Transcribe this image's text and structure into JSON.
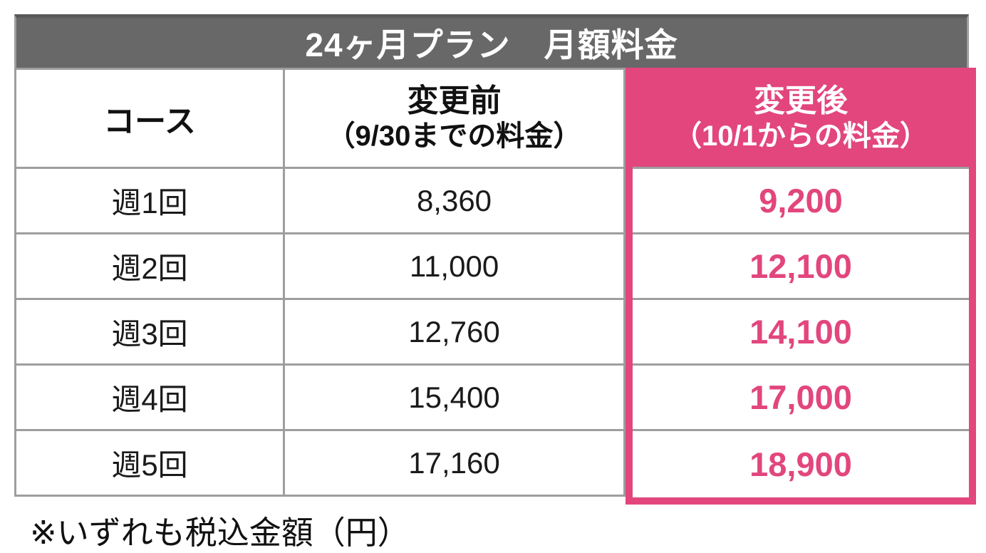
{
  "table": {
    "title": "24ヶ月プラン　月額料金",
    "columns": {
      "course": "コース",
      "before": {
        "line1": "変更前",
        "line2": "（9/30までの料金）"
      },
      "after": {
        "line1": "変更後",
        "line2": "（10/1からの料金）"
      }
    },
    "rows": [
      {
        "course": "週1回",
        "before": "8,360",
        "after": "9,200"
      },
      {
        "course": "週2回",
        "before": "11,000",
        "after": "12,100"
      },
      {
        "course": "週3回",
        "before": "12,760",
        "after": "14,100"
      },
      {
        "course": "週4回",
        "before": "15,400",
        "after": "17,000"
      },
      {
        "course": "週5回",
        "before": "17,160",
        "after": "18,900"
      }
    ],
    "footnote": "※いずれも税込金額（円）"
  },
  "colors": {
    "accent_pink": "#e2467d",
    "title_gray": "#686868",
    "grid_line": "#9e9e9e"
  },
  "chart_data": {
    "type": "table",
    "title": "24ヶ月プラン　月額料金",
    "columns": [
      "コース",
      "変更前（9/30までの料金）",
      "変更後（10/1からの料金）"
    ],
    "rows": [
      [
        "週1回",
        "8,360",
        "9,200"
      ],
      [
        "週2回",
        "11,000",
        "12,100"
      ],
      [
        "週3回",
        "12,760",
        "14,100"
      ],
      [
        "週4回",
        "15,400",
        "17,000"
      ],
      [
        "週5回",
        "17,160",
        "18,900"
      ]
    ],
    "before_values_numeric": [
      8360,
      11000,
      12760,
      15400,
      17160
    ],
    "after_values_numeric": [
      9200,
      12100,
      14100,
      17000,
      18900
    ],
    "note": "※いずれも税込金額（円）",
    "highlight_column": "変更後（10/1からの料金）"
  }
}
